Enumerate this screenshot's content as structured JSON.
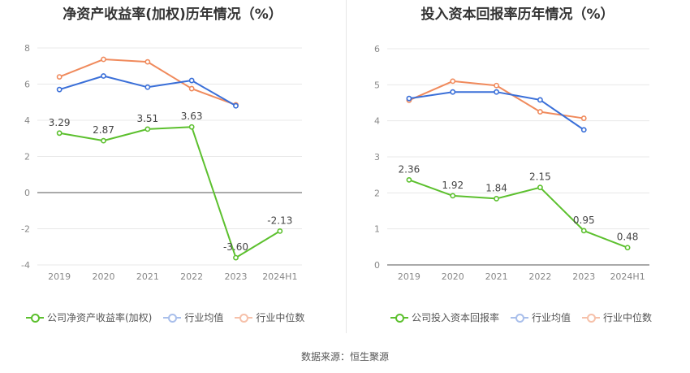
{
  "footer": {
    "source": "数据来源：恒生聚源"
  },
  "chart_data": [
    {
      "type": "line",
      "title": "净资产收益率(加权)历年情况（%）",
      "categories": [
        "2019",
        "2020",
        "2021",
        "2022",
        "2023",
        "2024H1"
      ],
      "ylim": [
        -4,
        8
      ],
      "yticks": [
        -4,
        -2,
        0,
        2,
        4,
        6,
        8
      ],
      "grid": true,
      "legend": "bottom",
      "series": [
        {
          "name": "公司净资产收益率(加权)",
          "color": "#5cc02e",
          "values": [
            3.29,
            2.87,
            3.51,
            3.63,
            -3.6,
            -2.13
          ],
          "labels": [
            "3.29",
            "2.87",
            "3.51",
            "3.63",
            "-3.60",
            "-2.13"
          ]
        },
        {
          "name": "行业均值",
          "color": "#3a6fd8",
          "values": [
            5.7,
            6.45,
            5.83,
            6.2,
            4.8,
            null
          ]
        },
        {
          "name": "行业中位数",
          "color": "#f08a5c",
          "values": [
            6.4,
            7.37,
            7.23,
            5.75,
            4.85,
            null
          ]
        }
      ]
    },
    {
      "type": "line",
      "title": "投入资本回报率历年情况（%）",
      "categories": [
        "2019",
        "2020",
        "2021",
        "2022",
        "2023",
        "2024H1"
      ],
      "ylim": [
        0,
        6
      ],
      "yticks": [
        0,
        1,
        2,
        3,
        4,
        5,
        6
      ],
      "grid": true,
      "legend": "bottom",
      "series": [
        {
          "name": "公司投入资本回报率",
          "color": "#5cc02e",
          "values": [
            2.36,
            1.92,
            1.84,
            2.15,
            0.95,
            0.48
          ],
          "labels": [
            "2.36",
            "1.92",
            "1.84",
            "2.15",
            "0.95",
            "0.48"
          ]
        },
        {
          "name": "行业均值",
          "color": "#3a6fd8",
          "values": [
            4.62,
            4.8,
            4.8,
            4.58,
            3.75,
            null
          ]
        },
        {
          "name": "行业中位数",
          "color": "#f08a5c",
          "values": [
            4.57,
            5.1,
            4.98,
            4.25,
            4.07,
            null
          ]
        }
      ]
    }
  ]
}
